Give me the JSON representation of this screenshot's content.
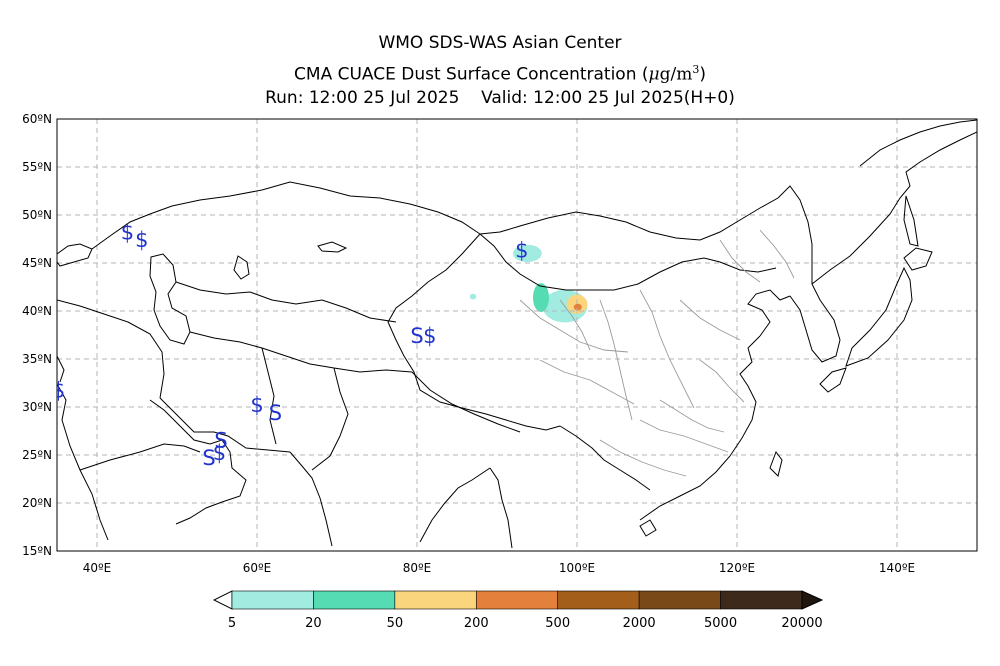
{
  "titles": {
    "line1": "WMO SDS-WAS Asian Center",
    "line2_prefix": "CMA CUACE Dust Surface Concentration (",
    "line2_unit_mu": "μ",
    "line2_unit_rest": "g/m",
    "line2_unit_exp": "3",
    "line2_suffix": ")",
    "run_label": "Run: 12:00 25 Jul 2025",
    "valid_label": "Valid: 12:00 25 Jul 2025(H+0)"
  },
  "map": {
    "lon_range": [
      35,
      150
    ],
    "lat_range": [
      15,
      60
    ],
    "lon_ticks": [
      {
        "value": 40,
        "label": "40ºE"
      },
      {
        "value": 60,
        "label": "60ºE"
      },
      {
        "value": 80,
        "label": "80ºE"
      },
      {
        "value": 100,
        "label": "100ºE"
      },
      {
        "value": 120,
        "label": "120ºE"
      },
      {
        "value": 140,
        "label": "140ºE"
      }
    ],
    "lat_ticks": [
      {
        "value": 60,
        "label": "60ºN"
      },
      {
        "value": 55,
        "label": "55ºN"
      },
      {
        "value": 50,
        "label": "50ºN"
      },
      {
        "value": 45,
        "label": "45ºN"
      },
      {
        "value": 40,
        "label": "40ºN"
      },
      {
        "value": 35,
        "label": "35ºN"
      },
      {
        "value": 30,
        "label": "30ºN"
      },
      {
        "value": 25,
        "label": "25ºN"
      },
      {
        "value": 20,
        "label": "20ºN"
      },
      {
        "value": 15,
        "label": "15ºN"
      }
    ],
    "grid": true,
    "dust_symbols": [
      {
        "lon": 43.8,
        "lat": 48.3,
        "symbol": "$"
      },
      {
        "lon": 45.6,
        "lat": 47.5,
        "symbol": "$"
      },
      {
        "lon": 93.1,
        "lat": 46.4,
        "symbol": "$"
      },
      {
        "lon": 80.0,
        "lat": 37.5,
        "symbol": "S"
      },
      {
        "lon": 81.6,
        "lat": 37.5,
        "symbol": "$"
      },
      {
        "lon": 35.2,
        "lat": 31.8,
        "symbol": "$"
      },
      {
        "lon": 60.0,
        "lat": 30.3,
        "symbol": "$"
      },
      {
        "lon": 62.3,
        "lat": 29.5,
        "symbol": "S"
      },
      {
        "lon": 54.0,
        "lat": 24.8,
        "symbol": "S"
      },
      {
        "lon": 55.3,
        "lat": 25.3,
        "symbol": "$"
      },
      {
        "lon": 55.5,
        "lat": 26.6,
        "symbol": "S"
      }
    ],
    "dust_areas": [
      {
        "lon": 93.8,
        "lat": 46.0,
        "rx": 1.8,
        "ry": 0.9,
        "level": 0
      },
      {
        "lon": 98.5,
        "lat": 40.5,
        "rx": 2.8,
        "ry": 1.7,
        "level": 0
      },
      {
        "lon": 95.5,
        "lat": 41.4,
        "rx": 1.0,
        "ry": 1.5,
        "level": 1
      },
      {
        "lon": 100.0,
        "lat": 40.7,
        "rx": 1.3,
        "ry": 1.0,
        "level": 2
      },
      {
        "lon": 100.1,
        "lat": 40.4,
        "rx": 0.5,
        "ry": 0.35,
        "level": 3
      },
      {
        "lon": 87.0,
        "lat": 41.5,
        "rx": 0.4,
        "ry": 0.3,
        "level": 0
      }
    ]
  },
  "colorbar": {
    "levels": [
      "5",
      "20",
      "50",
      "200",
      "500",
      "2000",
      "5000",
      "20000"
    ],
    "colors": [
      "#a2ebe1",
      "#55dcb2",
      "#fbd57d",
      "#e3803b",
      "#a35e1c",
      "#7a4918",
      "#3d2a1a"
    ],
    "under_color": "#ffffff",
    "over_color": "#1f160f"
  }
}
